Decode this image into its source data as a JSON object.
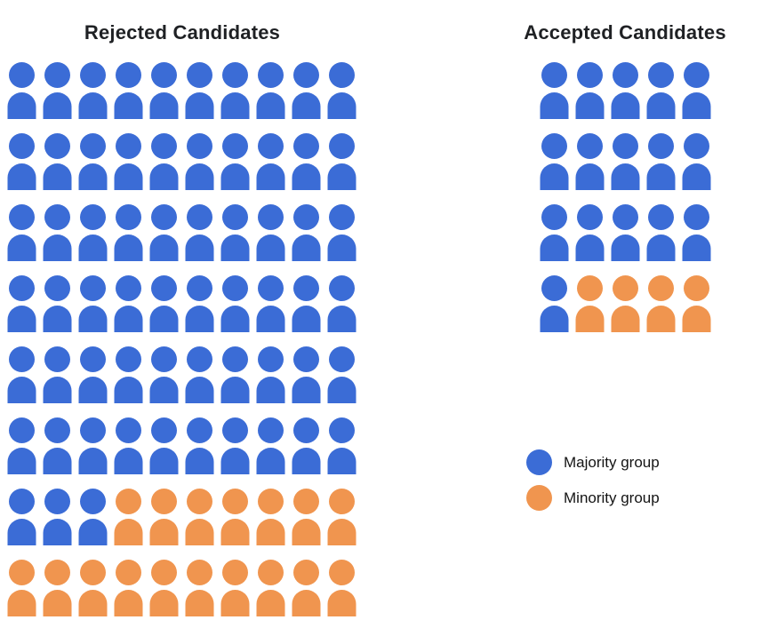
{
  "chart_data": {
    "type": "pictograph",
    "panels": [
      {
        "title": "Rejected Candidates",
        "columns": 10,
        "rows": [
          "MMMMMMMMMM",
          "MMMMMMMMMM",
          "MMMMMMMMMM",
          "MMMMMMMMMM",
          "MMMMMMMMMM",
          "MMMMMMMMMM",
          "MMMmmmmmmm",
          "mmmmmmmmmm"
        ],
        "counts": {
          "majority": 63,
          "minority": 17,
          "total": 80
        }
      },
      {
        "title": "Accepted Candidates",
        "columns": 5,
        "rows": [
          "MMMMM",
          "MMMMM",
          "MMMMM",
          "Mmmmm"
        ],
        "counts": {
          "majority": 16,
          "minority": 4,
          "total": 20
        }
      }
    ],
    "legend": [
      {
        "key": "majority",
        "label": "Majority group",
        "color": "#3B6CD6"
      },
      {
        "key": "minority",
        "label": "Minority group",
        "color": "#F0954F"
      }
    ],
    "colors": {
      "majority": "#3B6CD6",
      "minority": "#F0954F"
    },
    "icon": "person-icon",
    "legend_position": "right"
  }
}
